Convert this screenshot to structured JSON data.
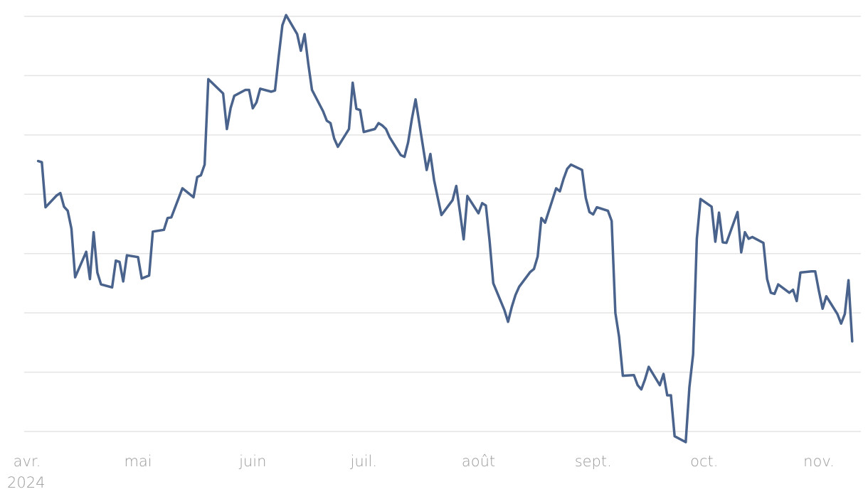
{
  "chart_data": {
    "type": "line",
    "title": "",
    "xlabel": "",
    "ylabel": "",
    "x_tick_labels": [
      "avr.",
      "mai",
      "juin",
      "juil.",
      "août",
      "sept.",
      "oct.",
      "nov."
    ],
    "x_tick_dates": [
      "2024-04-01",
      "2024-05-01",
      "2024-06-01",
      "2024-07-01",
      "2024-08-01",
      "2024-09-01",
      "2024-10-01",
      "2024-11-01"
    ],
    "year_label": "2024",
    "x_range": [
      "2024-04-01",
      "2024-11-08"
    ],
    "y_range": [
      0,
      7
    ],
    "y_gridlines": [
      0,
      1,
      2,
      3,
      4,
      5,
      6,
      7
    ],
    "y_tick_labels_visible": false,
    "grid": "horizontal",
    "legend": "none",
    "colors": {
      "series": "#4a638c",
      "grid": "#e4e4e4",
      "tick_text": "#9a9a9a"
    },
    "series": [
      {
        "color": "#4a638c",
        "points": [
          [
            "2024-04-04",
            4.56
          ],
          [
            "2024-04-05",
            4.54
          ],
          [
            "2024-04-06",
            3.78
          ],
          [
            "2024-04-09",
            3.98
          ],
          [
            "2024-04-10",
            4.02
          ],
          [
            "2024-04-11",
            3.79
          ],
          [
            "2024-04-12",
            3.72
          ],
          [
            "2024-04-13",
            3.42
          ],
          [
            "2024-04-14",
            2.6
          ],
          [
            "2024-04-17",
            3.03
          ],
          [
            "2024-04-18",
            2.57
          ],
          [
            "2024-04-19",
            3.36
          ],
          [
            "2024-04-20",
            2.68
          ],
          [
            "2024-04-21",
            2.48
          ],
          [
            "2024-04-24",
            2.43
          ],
          [
            "2024-04-25",
            2.88
          ],
          [
            "2024-04-26",
            2.86
          ],
          [
            "2024-04-27",
            2.53
          ],
          [
            "2024-04-28",
            2.97
          ],
          [
            "2024-05-01",
            2.94
          ],
          [
            "2024-05-02",
            2.58
          ],
          [
            "2024-05-04",
            2.63
          ],
          [
            "2024-05-05",
            3.37
          ],
          [
            "2024-05-08",
            3.4
          ],
          [
            "2024-05-09",
            3.6
          ],
          [
            "2024-05-10",
            3.61
          ],
          [
            "2024-05-13",
            4.1
          ],
          [
            "2024-05-16",
            3.95
          ],
          [
            "2024-05-17",
            4.29
          ],
          [
            "2024-05-18",
            4.32
          ],
          [
            "2024-05-19",
            4.5
          ],
          [
            "2024-05-20",
            5.94
          ],
          [
            "2024-05-24",
            5.7
          ],
          [
            "2024-05-25",
            5.1
          ],
          [
            "2024-05-26",
            5.45
          ],
          [
            "2024-05-27",
            5.66
          ],
          [
            "2024-05-30",
            5.76
          ],
          [
            "2024-05-31",
            5.76
          ],
          [
            "2024-06-01",
            5.45
          ],
          [
            "2024-06-02",
            5.55
          ],
          [
            "2024-06-03",
            5.78
          ],
          [
            "2024-06-06",
            5.73
          ],
          [
            "2024-06-07",
            5.75
          ],
          [
            "2024-06-08",
            6.32
          ],
          [
            "2024-06-09",
            6.85
          ],
          [
            "2024-06-10",
            7.02
          ],
          [
            "2024-06-13",
            6.7
          ],
          [
            "2024-06-14",
            6.42
          ],
          [
            "2024-06-15",
            6.7
          ],
          [
            "2024-06-16",
            6.2
          ],
          [
            "2024-06-17",
            5.76
          ],
          [
            "2024-06-20",
            5.4
          ],
          [
            "2024-06-21",
            5.24
          ],
          [
            "2024-06-22",
            5.2
          ],
          [
            "2024-06-23",
            4.94
          ],
          [
            "2024-06-24",
            4.8
          ],
          [
            "2024-06-27",
            5.1
          ],
          [
            "2024-06-28",
            5.88
          ],
          [
            "2024-06-29",
            5.44
          ],
          [
            "2024-06-30",
            5.42
          ],
          [
            "2024-07-01",
            5.05
          ],
          [
            "2024-07-04",
            5.1
          ],
          [
            "2024-07-05",
            5.2
          ],
          [
            "2024-07-06",
            5.16
          ],
          [
            "2024-07-07",
            5.1
          ],
          [
            "2024-07-08",
            4.96
          ],
          [
            "2024-07-11",
            4.66
          ],
          [
            "2024-07-12",
            4.63
          ],
          [
            "2024-07-13",
            4.88
          ],
          [
            "2024-07-14",
            5.27
          ],
          [
            "2024-07-15",
            5.6
          ],
          [
            "2024-07-18",
            4.41
          ],
          [
            "2024-07-19",
            4.68
          ],
          [
            "2024-07-20",
            4.24
          ],
          [
            "2024-07-21",
            3.94
          ],
          [
            "2024-07-22",
            3.65
          ],
          [
            "2024-07-25",
            3.9
          ],
          [
            "2024-07-26",
            4.14
          ],
          [
            "2024-07-27",
            3.7
          ],
          [
            "2024-07-28",
            3.24
          ],
          [
            "2024-07-29",
            3.97
          ],
          [
            "2024-08-01",
            3.68
          ],
          [
            "2024-08-02",
            3.85
          ],
          [
            "2024-08-03",
            3.81
          ],
          [
            "2024-08-04",
            3.22
          ],
          [
            "2024-08-05",
            2.5
          ],
          [
            "2024-08-08",
            2.05
          ],
          [
            "2024-08-09",
            1.85
          ],
          [
            "2024-08-10",
            2.1
          ],
          [
            "2024-08-11",
            2.3
          ],
          [
            "2024-08-12",
            2.44
          ],
          [
            "2024-08-15",
            2.69
          ],
          [
            "2024-08-16",
            2.74
          ],
          [
            "2024-08-17",
            2.95
          ],
          [
            "2024-08-18",
            3.6
          ],
          [
            "2024-08-19",
            3.52
          ],
          [
            "2024-08-22",
            4.1
          ],
          [
            "2024-08-23",
            4.05
          ],
          [
            "2024-08-24",
            4.26
          ],
          [
            "2024-08-25",
            4.43
          ],
          [
            "2024-08-26",
            4.5
          ],
          [
            "2024-08-29",
            4.41
          ],
          [
            "2024-08-30",
            3.94
          ],
          [
            "2024-08-31",
            3.7
          ],
          [
            "2024-09-01",
            3.66
          ],
          [
            "2024-09-02",
            3.78
          ],
          [
            "2024-09-05",
            3.72
          ],
          [
            "2024-09-06",
            3.55
          ],
          [
            "2024-09-07",
            2.0
          ],
          [
            "2024-09-08",
            1.6
          ],
          [
            "2024-09-09",
            0.94
          ],
          [
            "2024-09-12",
            0.95
          ],
          [
            "2024-09-13",
            0.78
          ],
          [
            "2024-09-14",
            0.71
          ],
          [
            "2024-09-15",
            0.88
          ],
          [
            "2024-09-16",
            1.09
          ],
          [
            "2024-09-19",
            0.78
          ],
          [
            "2024-09-20",
            0.97
          ],
          [
            "2024-09-21",
            0.61
          ],
          [
            "2024-09-22",
            0.61
          ],
          [
            "2024-09-23",
            -0.08
          ],
          [
            "2024-09-26",
            -0.18
          ],
          [
            "2024-09-27",
            0.75
          ],
          [
            "2024-09-28",
            1.3
          ],
          [
            "2024-09-29",
            3.25
          ],
          [
            "2024-09-30",
            3.92
          ],
          [
            "2024-10-03",
            3.79
          ],
          [
            "2024-10-04",
            3.2
          ],
          [
            "2024-10-05",
            3.69
          ],
          [
            "2024-10-06",
            3.19
          ],
          [
            "2024-10-07",
            3.18
          ],
          [
            "2024-10-10",
            3.7
          ],
          [
            "2024-10-11",
            3.02
          ],
          [
            "2024-10-12",
            3.36
          ],
          [
            "2024-10-13",
            3.25
          ],
          [
            "2024-10-14",
            3.28
          ],
          [
            "2024-10-17",
            3.18
          ],
          [
            "2024-10-18",
            2.57
          ],
          [
            "2024-10-19",
            2.34
          ],
          [
            "2024-10-20",
            2.32
          ],
          [
            "2024-10-21",
            2.48
          ],
          [
            "2024-10-24",
            2.34
          ],
          [
            "2024-10-25",
            2.39
          ],
          [
            "2024-10-26",
            2.2
          ],
          [
            "2024-10-27",
            2.68
          ],
          [
            "2024-10-30",
            2.7
          ],
          [
            "2024-10-31",
            2.7
          ],
          [
            "2024-11-01",
            2.37
          ],
          [
            "2024-11-02",
            2.07
          ],
          [
            "2024-11-03",
            2.28
          ],
          [
            "2024-11-06",
            1.98
          ],
          [
            "2024-11-07",
            1.82
          ],
          [
            "2024-11-08",
            1.98
          ],
          [
            "2024-11-09",
            2.55
          ],
          [
            "2024-11-10",
            1.52
          ]
        ]
      }
    ]
  }
}
